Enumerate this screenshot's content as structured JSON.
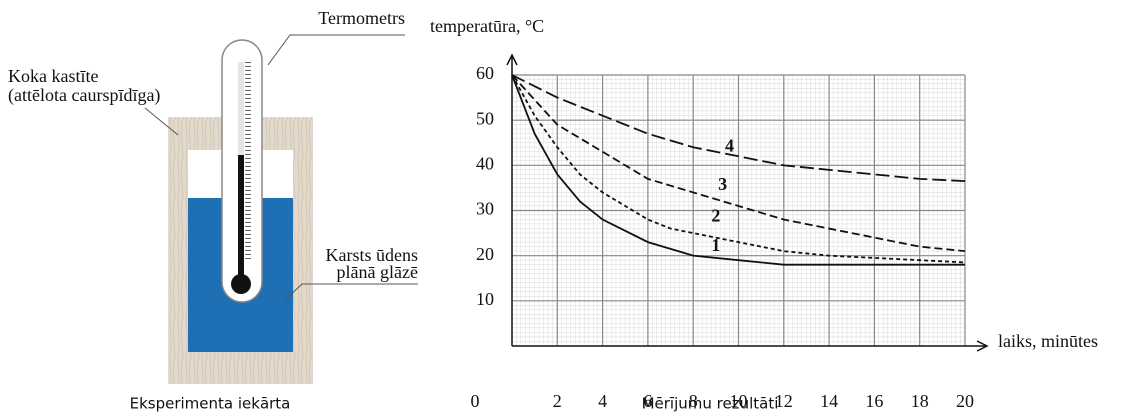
{
  "diagram": {
    "thermometer_label": "Termometrs",
    "box_label": [
      "Koka kastīte",
      "(attēlota caurspīdīga)"
    ],
    "water_label": [
      "Karsts ūdens",
      "plānā glāzē"
    ],
    "caption": "Eksperimenta iekārta"
  },
  "chart_data": {
    "type": "line",
    "caption": "Mērījumu rezultāti",
    "y_label": "temperatūra, °C",
    "x_label": "laiks, minūtes",
    "xlim": [
      0,
      20
    ],
    "ylim": [
      0,
      60
    ],
    "xticks": [
      0,
      2,
      4,
      6,
      8,
      10,
      12,
      14,
      16,
      18,
      20
    ],
    "yticks": [
      10,
      20,
      30,
      40,
      50,
      60
    ],
    "grid": true,
    "series": [
      {
        "name": "1",
        "color": "#111111",
        "dash": "solid",
        "x": [
          0,
          1,
          2,
          3,
          4,
          5,
          6,
          7,
          8,
          10,
          12,
          14,
          16,
          18,
          20
        ],
        "values": [
          60,
          47,
          38,
          32,
          28,
          25.5,
          23,
          21.5,
          20,
          19,
          18,
          18,
          18,
          18,
          18
        ]
      },
      {
        "name": "2",
        "color": "#111111",
        "dash": "short",
        "x": [
          0,
          1,
          2,
          3,
          4,
          5,
          6,
          7,
          8,
          10,
          12,
          14,
          16,
          18,
          20
        ],
        "values": [
          60,
          51,
          44,
          38,
          34,
          31,
          28,
          26,
          25,
          23,
          21,
          20,
          19.5,
          19,
          18.5
        ]
      },
      {
        "name": "3",
        "color": "#111111",
        "dash": "medium",
        "x": [
          0,
          2,
          4,
          6,
          8,
          10,
          12,
          14,
          16,
          18,
          20
        ],
        "values": [
          60,
          49,
          43,
          37,
          34,
          31,
          28,
          26,
          24,
          22,
          21
        ]
      },
      {
        "name": "4",
        "color": "#111111",
        "dash": "long",
        "x": [
          0,
          2,
          4,
          6,
          8,
          10,
          12,
          14,
          16,
          18,
          20
        ],
        "values": [
          60,
          55,
          51,
          47,
          44,
          42,
          40,
          39,
          38,
          37,
          36.5
        ]
      }
    ]
  }
}
